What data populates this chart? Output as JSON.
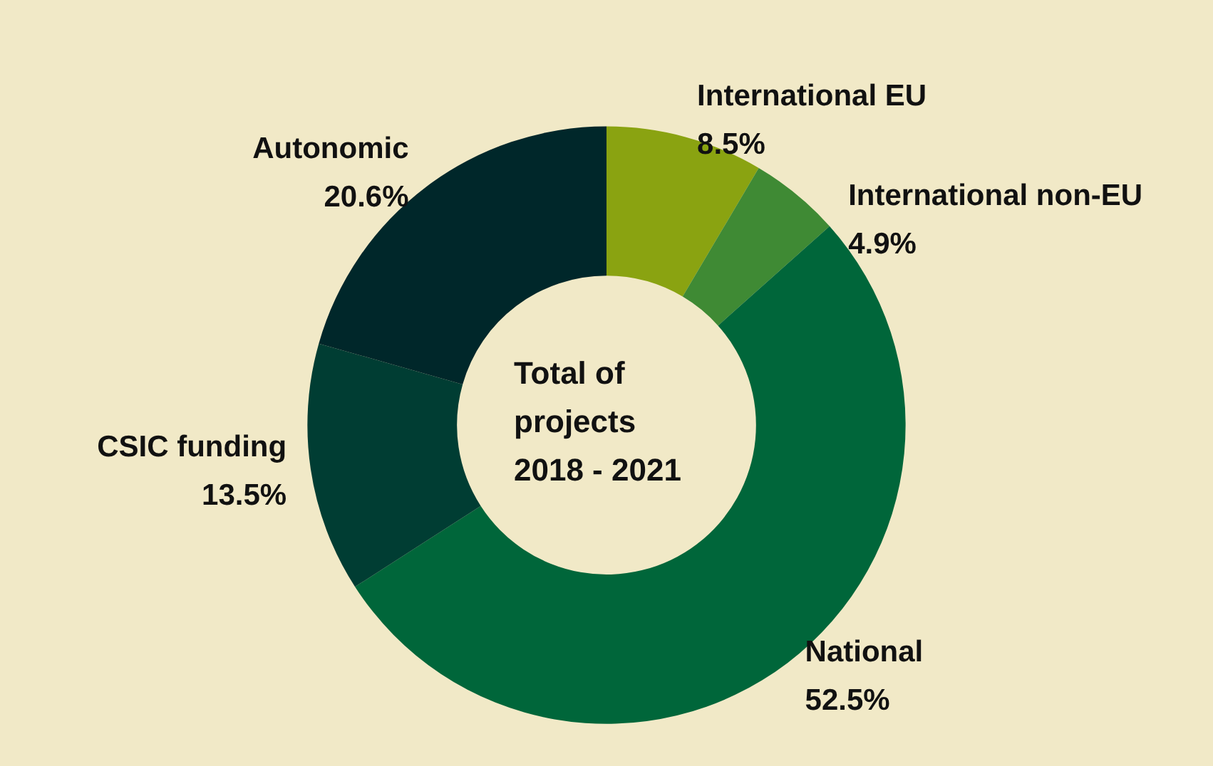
{
  "chart_data": {
    "type": "donut",
    "title": "Total of projects 2018 - 2021",
    "categories": [
      "International EU",
      "International non-EU",
      "National",
      "CSIC funding",
      "Autonomic"
    ],
    "values": [
      8.5,
      4.9,
      52.5,
      13.5,
      20.6
    ],
    "value_labels": [
      "8.5%",
      "4.9%",
      "52.5%",
      "13.5%",
      "20.6%"
    ],
    "colors": [
      "#8aa311",
      "#3f8a34",
      "#00663a",
      "#003d33",
      "#00272a"
    ],
    "legend": false
  }
}
